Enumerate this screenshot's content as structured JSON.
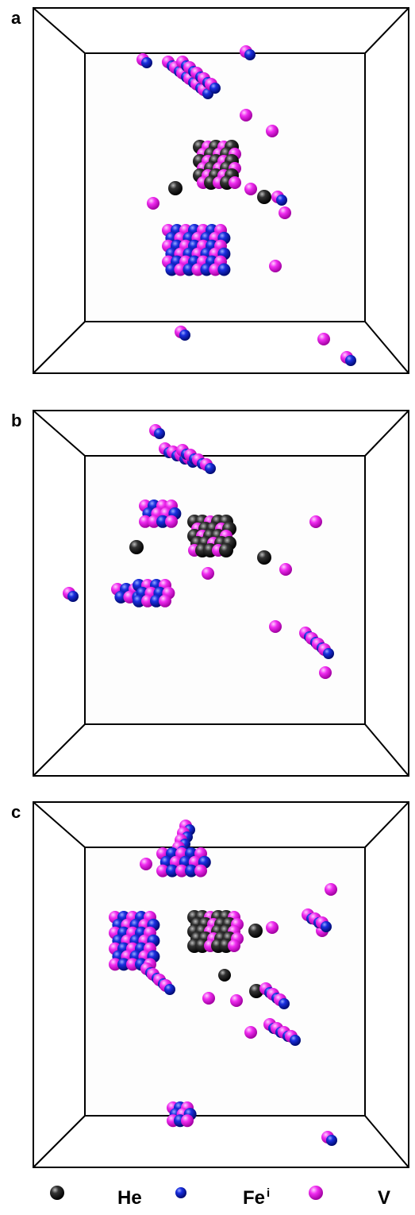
{
  "panels": [
    {
      "label": "a"
    },
    {
      "label": "b"
    },
    {
      "label": "c"
    }
  ],
  "legend": {
    "items": [
      {
        "label": "He"
      },
      {
        "label": "Fe",
        "sup": "i"
      },
      {
        "label": "V"
      }
    ]
  }
}
